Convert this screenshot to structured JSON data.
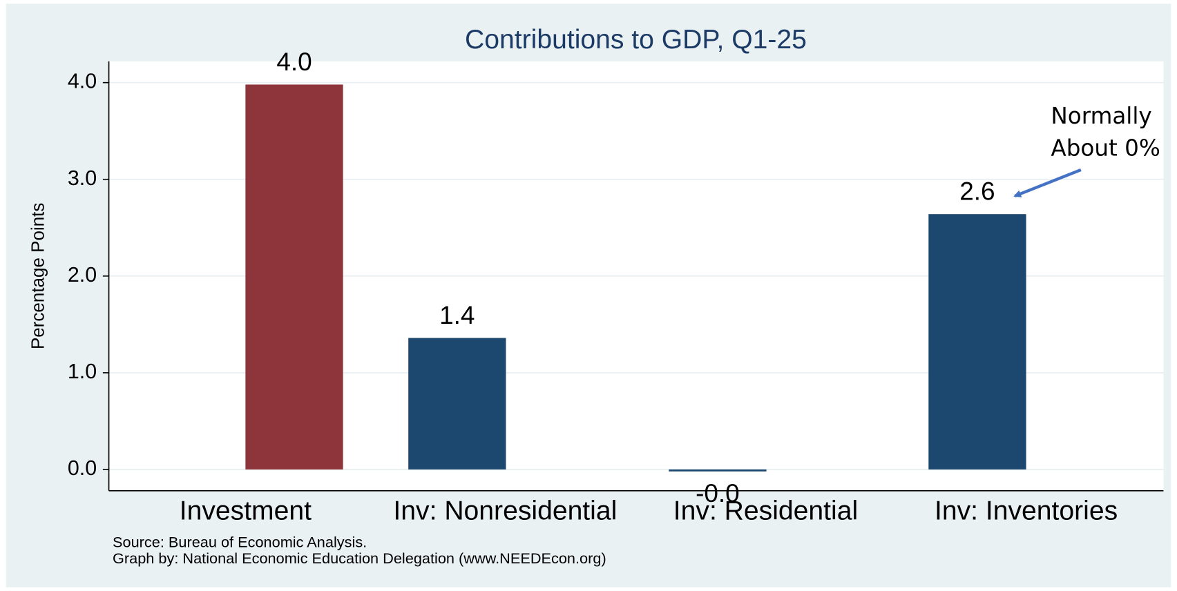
{
  "chart_data": {
    "type": "bar",
    "title": "Contributions to GDP, Q1-25",
    "y_label": "Percentage Points",
    "categories": [
      "Investment",
      "Inv: Nonresidential",
      "Inv: Residential",
      "Inv: Inventories"
    ],
    "values": [
      3.98,
      1.36,
      -0.02,
      2.64
    ],
    "value_labels": [
      "4.0",
      "1.4",
      "-0.0",
      "2.6"
    ],
    "colors": [
      "#8e353b",
      "#1c4870",
      "#1c4870",
      "#1c4870"
    ],
    "ylim": [
      -0.22,
      4.22
    ],
    "yticks": [
      {
        "value": 0,
        "label": "0.0"
      },
      {
        "value": 1,
        "label": "1.0"
      },
      {
        "value": 2,
        "label": "2.0"
      },
      {
        "value": 3,
        "label": "3.0"
      },
      {
        "value": 4,
        "label": "4.0"
      }
    ],
    "grid": true,
    "annotation": [
      "Normally",
      "About 0%"
    ],
    "notes": [
      "Source: Bureau of Economic Analysis.",
      "Graph by: National Economic Education Delegation (www.NEEDEcon.org)"
    ]
  }
}
